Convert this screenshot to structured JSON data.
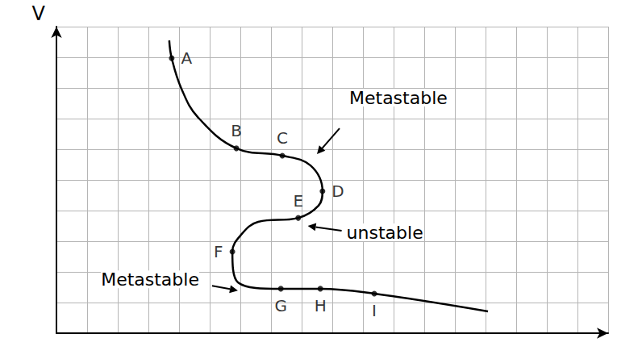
{
  "chart_data": {
    "type": "line",
    "axis_labels": {
      "y": "V"
    },
    "x": [
      3.68,
      3.76,
      4.08,
      4.61,
      5.87,
      7.37,
      8.29,
      8.68,
      8.55,
      7.89,
      6.58,
      6.05,
      5.74,
      5.92,
      7.32,
      8.61,
      10.37,
      14.08
    ],
    "values": [
      9.55,
      8.97,
      7.97,
      7.05,
      6.03,
      5.79,
      5.47,
      4.63,
      4.16,
      3.76,
      3.63,
      3.24,
      2.66,
      1.66,
      1.45,
      1.45,
      1.29,
      0.71
    ],
    "color": "#000000",
    "points": {
      "labels": [
        "A",
        "B",
        "C",
        "D",
        "E",
        "F",
        "G",
        "H",
        "I"
      ],
      "x": [
        3.76,
        5.87,
        7.37,
        8.68,
        7.89,
        5.74,
        7.32,
        8.61,
        10.37
      ],
      "values": [
        8.97,
        6.03,
        5.79,
        4.63,
        3.76,
        2.66,
        1.45,
        1.45,
        1.29
      ]
    },
    "annotations": [
      {
        "text": "Metastable",
        "x": 8.5,
        "y": 5.84
      },
      {
        "text": "unstable",
        "x": 8.2,
        "y": 3.5
      },
      {
        "text": "Metastable",
        "x": 5.92,
        "y": 1.39
      }
    ],
    "xlim": [
      0,
      18
    ],
    "ylim": [
      0,
      10
    ],
    "xticks": [
      0,
      1,
      2,
      3,
      4,
      5,
      6,
      7,
      8,
      9,
      10,
      11,
      12,
      13,
      14,
      15,
      16,
      17,
      18
    ],
    "yticks": [
      0,
      1,
      2,
      3,
      4,
      5,
      6,
      7,
      8,
      9,
      10
    ],
    "grid": true,
    "tick_labels": false
  }
}
